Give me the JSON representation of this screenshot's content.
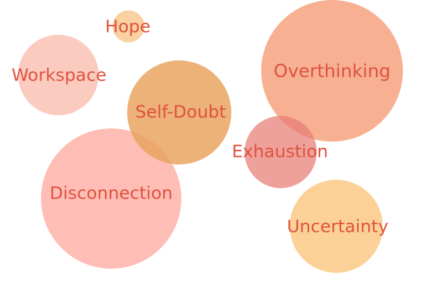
{
  "bubbles": [
    {
      "id": "hope",
      "label": "Hope",
      "color": "#f9c98f",
      "opacity": 0.85
    },
    {
      "id": "workspace",
      "label": "Workspace",
      "color": "#fbc2b5",
      "opacity": 0.85
    },
    {
      "id": "overthinking",
      "label": "Overthinking",
      "color": "#f6a27f",
      "opacity": 0.85
    },
    {
      "id": "self-doubt",
      "label": "Self-Doubt",
      "color": "#e9a45f",
      "opacity": 0.85
    },
    {
      "id": "exhaustion",
      "label": "Exhaustion",
      "color": "#e87c74",
      "opacity": 0.72
    },
    {
      "id": "disconnection",
      "label": "Disconnection",
      "color": "#fda79c",
      "opacity": 0.75
    },
    {
      "id": "uncertainty",
      "label": "Uncertainty",
      "color": "#fbc47a",
      "opacity": 0.78
    }
  ],
  "colors": {
    "label_text": "#e0523f",
    "background": "#ffffff"
  }
}
